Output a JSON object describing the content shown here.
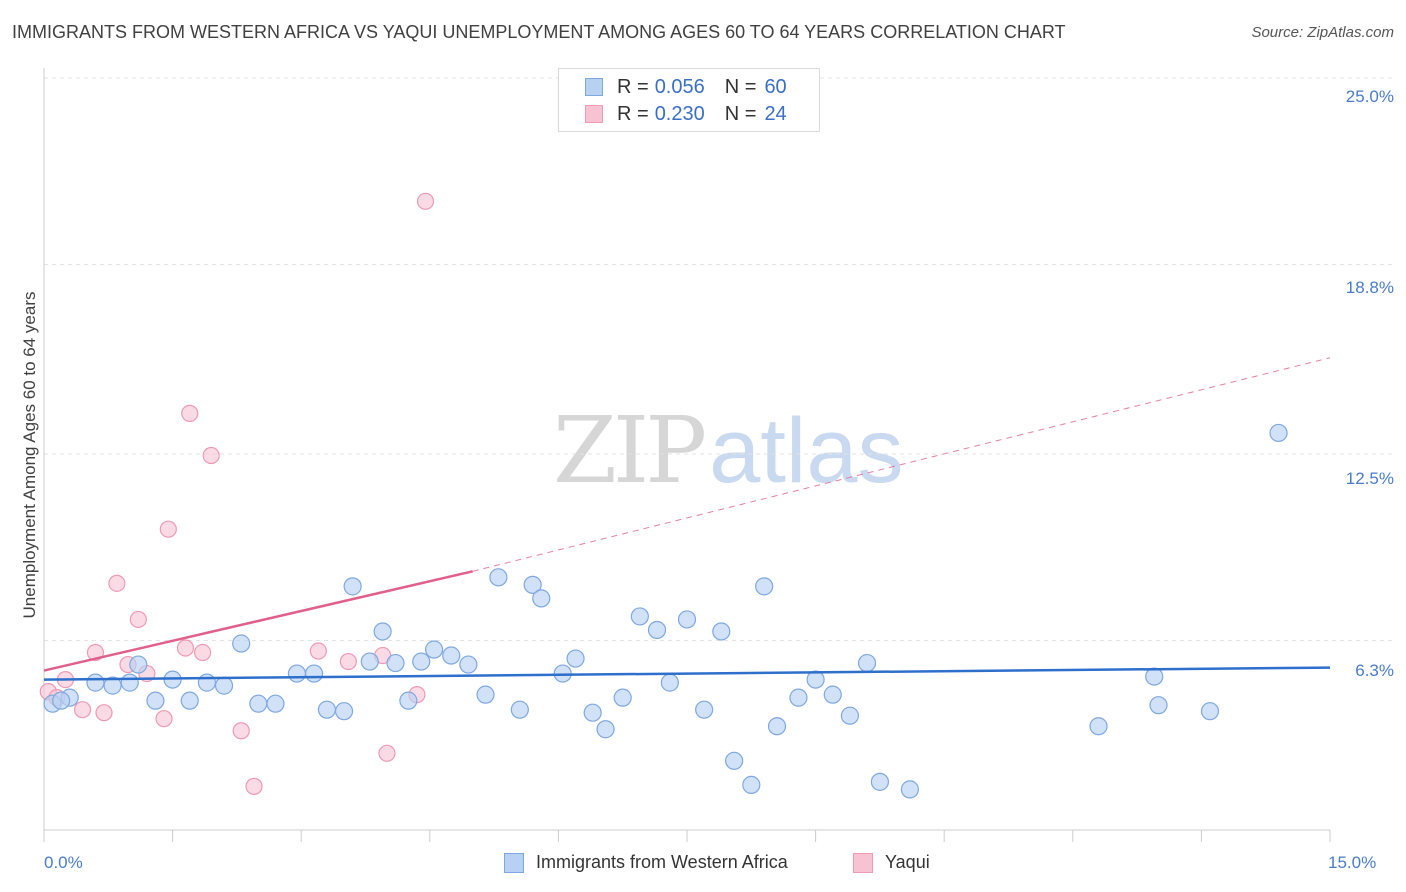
{
  "title": "IMMIGRANTS FROM WESTERN AFRICA VS YAQUI UNEMPLOYMENT AMONG AGES 60 TO 64 YEARS CORRELATION CHART",
  "source": "Source: ZipAtlas.com",
  "watermark": {
    "zip": "ZIP",
    "atlas": "atlas"
  },
  "colors": {
    "blue_fill": "#b8d1f3",
    "blue_stroke": "#7fa8e0",
    "blue_line": "#2e6fcc",
    "pink_fill": "#f7c3d3",
    "pink_stroke": "#ee9ab4",
    "pink_line": "#e0608c",
    "tick_text": "#4a7cc7"
  },
  "legend": {
    "r_label": "R =",
    "n_label": "N =",
    "entries": [
      {
        "r": "0.056",
        "n": "60"
      },
      {
        "r": "0.230",
        "n": "24"
      }
    ]
  },
  "chart_data": {
    "type": "scatter",
    "title": "IMMIGRANTS FROM WESTERN AFRICA VS YAQUI UNEMPLOYMENT AMONG AGES 60 TO 64 YEARS CORRELATION CHART",
    "xlabel": "",
    "ylabel": "Unemployment Among Ages 60 to 64 years",
    "xlim": [
      0,
      15
    ],
    "ylim": [
      0,
      25
    ],
    "x_tick_labels": [
      "0.0%",
      "15.0%"
    ],
    "y_ticks": [
      6.3,
      12.5,
      18.8,
      25.0
    ],
    "y_tick_labels": [
      "6.3%",
      "12.5%",
      "18.8%",
      "25.0%"
    ],
    "grid": true,
    "legend_position": "top-center",
    "series": [
      {
        "name": "Immigrants from Western Africa",
        "color": "#b8d1f3",
        "trend": {
          "x": [
            0,
            15
          ],
          "y": [
            5.0,
            5.4
          ]
        },
        "points": [
          [
            0.1,
            4.2
          ],
          [
            0.3,
            4.4
          ],
          [
            0.6,
            4.9
          ],
          [
            0.8,
            4.8
          ],
          [
            1.0,
            4.9
          ],
          [
            1.1,
            5.5
          ],
          [
            1.3,
            4.3
          ],
          [
            1.5,
            5.0
          ],
          [
            1.7,
            4.3
          ],
          [
            1.9,
            4.9
          ],
          [
            2.1,
            4.8
          ],
          [
            2.3,
            6.2
          ],
          [
            2.5,
            4.2
          ],
          [
            2.7,
            4.2
          ],
          [
            2.95,
            5.2
          ],
          [
            3.15,
            5.2
          ],
          [
            3.3,
            4.0
          ],
          [
            3.5,
            3.95
          ],
          [
            3.6,
            8.1
          ],
          [
            3.8,
            5.6
          ],
          [
            3.95,
            6.6
          ],
          [
            4.1,
            5.55
          ],
          [
            4.25,
            4.3
          ],
          [
            4.4,
            5.6
          ],
          [
            4.55,
            6.0
          ],
          [
            4.75,
            5.8
          ],
          [
            4.95,
            5.5
          ],
          [
            5.15,
            4.5
          ],
          [
            5.3,
            8.4
          ],
          [
            5.55,
            4.0
          ],
          [
            5.7,
            8.15
          ],
          [
            5.8,
            7.7
          ],
          [
            6.05,
            5.2
          ],
          [
            6.2,
            5.7
          ],
          [
            6.4,
            3.9
          ],
          [
            6.55,
            3.35
          ],
          [
            6.75,
            4.4
          ],
          [
            6.95,
            7.1
          ],
          [
            7.15,
            6.65
          ],
          [
            7.3,
            4.9
          ],
          [
            7.5,
            7.0
          ],
          [
            7.7,
            4.0
          ],
          [
            7.9,
            6.6
          ],
          [
            8.05,
            2.3
          ],
          [
            8.25,
            1.5
          ],
          [
            8.4,
            8.1
          ],
          [
            8.55,
            3.45
          ],
          [
            8.8,
            4.4
          ],
          [
            9.0,
            5.0
          ],
          [
            9.2,
            4.5
          ],
          [
            9.4,
            3.8
          ],
          [
            9.6,
            5.55
          ],
          [
            9.75,
            1.6
          ],
          [
            10.1,
            1.35
          ],
          [
            12.3,
            3.45
          ],
          [
            12.95,
            5.1
          ],
          [
            13.0,
            4.15
          ],
          [
            13.6,
            3.95
          ],
          [
            14.4,
            13.2
          ],
          [
            0.2,
            4.3
          ]
        ]
      },
      {
        "name": "Yaqui",
        "color": "#f7c3d3",
        "trend": {
          "x": [
            0,
            5.0
          ],
          "y": [
            5.3,
            8.6
          ],
          "extended_x": [
            5.0,
            15
          ],
          "extended_y": [
            8.6,
            15.7
          ]
        },
        "points": [
          [
            0.05,
            4.6
          ],
          [
            0.15,
            4.4
          ],
          [
            0.25,
            5.0
          ],
          [
            0.45,
            4.0
          ],
          [
            0.6,
            5.9
          ],
          [
            0.7,
            3.9
          ],
          [
            0.85,
            8.2
          ],
          [
            0.98,
            5.5
          ],
          [
            1.1,
            7.0
          ],
          [
            1.2,
            5.2
          ],
          [
            1.4,
            3.7
          ],
          [
            1.45,
            10.0
          ],
          [
            1.65,
            6.05
          ],
          [
            1.7,
            13.85
          ],
          [
            1.85,
            5.9
          ],
          [
            1.95,
            12.45
          ],
          [
            2.3,
            3.3
          ],
          [
            2.45,
            1.45
          ],
          [
            3.2,
            5.95
          ],
          [
            3.55,
            5.6
          ],
          [
            3.95,
            5.8
          ],
          [
            4.0,
            2.55
          ],
          [
            4.35,
            4.5
          ],
          [
            4.45,
            20.9
          ]
        ]
      }
    ]
  }
}
